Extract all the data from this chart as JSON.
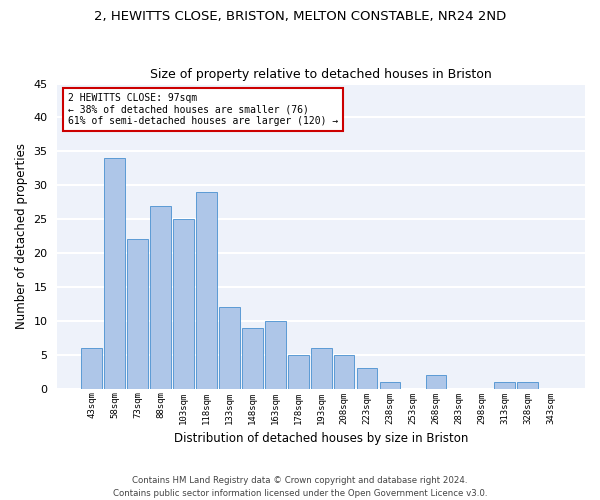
{
  "title1": "2, HEWITTS CLOSE, BRISTON, MELTON CONSTABLE, NR24 2ND",
  "title2": "Size of property relative to detached houses in Briston",
  "xlabel": "Distribution of detached houses by size in Briston",
  "ylabel": "Number of detached properties",
  "categories": [
    "43sqm",
    "58sqm",
    "73sqm",
    "88sqm",
    "103sqm",
    "118sqm",
    "133sqm",
    "148sqm",
    "163sqm",
    "178sqm",
    "193sqm",
    "208sqm",
    "223sqm",
    "238sqm",
    "253sqm",
    "268sqm",
    "283sqm",
    "298sqm",
    "313sqm",
    "328sqm",
    "343sqm"
  ],
  "values": [
    6,
    34,
    22,
    27,
    25,
    29,
    12,
    9,
    10,
    5,
    6,
    5,
    3,
    1,
    0,
    2,
    0,
    0,
    1,
    1,
    0
  ],
  "bar_color": "#aec6e8",
  "bar_edge_color": "#5b9bd5",
  "annotation_line1": "2 HEWITTS CLOSE: 97sqm",
  "annotation_line2": "← 38% of detached houses are smaller (76)",
  "annotation_line3": "61% of semi-detached houses are larger (120) →",
  "annotation_box_color": "#cc0000",
  "annotation_box_fill": "#ffffff",
  "background_color": "#eef2fa",
  "grid_color": "#ffffff",
  "ylim": [
    0,
    45
  ],
  "yticks": [
    0,
    5,
    10,
    15,
    20,
    25,
    30,
    35,
    40,
    45
  ],
  "footer": "Contains HM Land Registry data © Crown copyright and database right 2024.\nContains public sector information licensed under the Open Government Licence v3.0.",
  "title1_fontsize": 9.5,
  "title2_fontsize": 9,
  "xlabel_fontsize": 8.5,
  "ylabel_fontsize": 8.5
}
